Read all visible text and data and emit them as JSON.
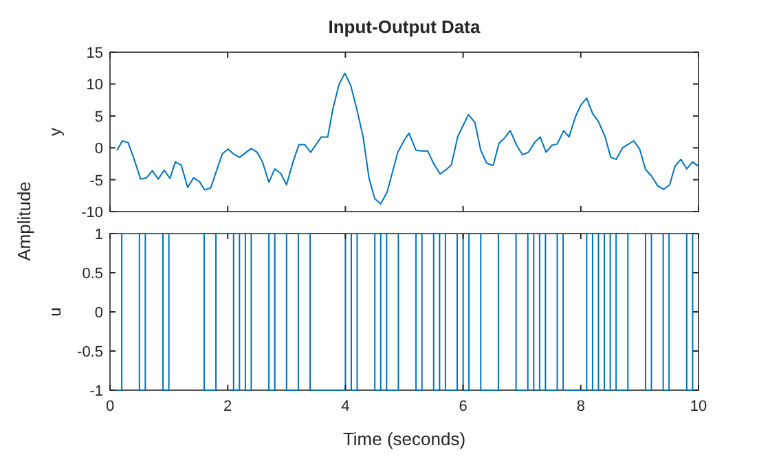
{
  "chart_data": [
    {
      "type": "line",
      "title": "Input-Output Data",
      "ylabel": "y",
      "annotations": [
        "Amplitude"
      ],
      "tick_labels": "y",
      "xlim": [
        0,
        10
      ],
      "xticks": [
        0,
        2,
        4,
        6,
        8,
        10
      ],
      "ylim": [
        -10,
        15
      ],
      "yticks": [
        -10,
        -5,
        0,
        5,
        10,
        15
      ],
      "grid": false,
      "series": [
        {
          "color": "#0072bd",
          "x": [
            0.12,
            0.21,
            0.31,
            0.41,
            0.52,
            0.62,
            0.72,
            0.82,
            0.92,
            1.02,
            1.11,
            1.21,
            1.32,
            1.42,
            1.52,
            1.61,
            1.71,
            1.91,
            2.01,
            2.09,
            2.2,
            2.4,
            2.5,
            2.59,
            2.7,
            2.8,
            2.9,
            3.0,
            3.11,
            3.21,
            3.31,
            3.41,
            3.59,
            3.7,
            3.79,
            3.89,
            3.99,
            4.09,
            4.19,
            4.3,
            4.4,
            4.5,
            4.6,
            4.71,
            4.89,
            5.0,
            5.08,
            5.2,
            5.3,
            5.4,
            5.5,
            5.61,
            5.7,
            5.8,
            5.91,
            6.09,
            6.2,
            6.3,
            6.4,
            6.51,
            6.61,
            6.71,
            6.8,
            6.91,
            7.01,
            7.11,
            7.22,
            7.31,
            7.41,
            7.51,
            7.6,
            7.71,
            7.8,
            7.91,
            8.0,
            8.1,
            8.2,
            8.3,
            8.41,
            8.51,
            8.6,
            8.71,
            8.9,
            9.0,
            9.1,
            9.2,
            9.31,
            9.41,
            9.51,
            9.6,
            9.7,
            9.8,
            9.9,
            10.0
          ],
          "values": [
            -0.4,
            1.1,
            0.8,
            -1.8,
            -4.9,
            -4.7,
            -3.6,
            -4.9,
            -3.5,
            -4.8,
            -2.2,
            -2.7,
            -6.2,
            -4.7,
            -5.3,
            -6.6,
            -6.3,
            -0.9,
            -0.2,
            -0.9,
            -1.5,
            -0.1,
            -0.7,
            -2.2,
            -5.4,
            -3.3,
            -4.0,
            -5.8,
            -2.2,
            0.5,
            0.5,
            -0.7,
            1.7,
            1.7,
            6.2,
            9.9,
            11.7,
            9.8,
            6.2,
            1.8,
            -4.7,
            -8.0,
            -8.8,
            -6.9,
            -0.7,
            1.2,
            2.3,
            -0.4,
            -0.5,
            -0.5,
            -2.5,
            -4.1,
            -3.5,
            -2.7,
            1.8,
            5.2,
            4.0,
            -0.4,
            -2.4,
            -2.8,
            0.7,
            1.6,
            2.7,
            0.4,
            -1.1,
            -0.7,
            0.9,
            1.7,
            -0.7,
            0.4,
            0.6,
            2.7,
            1.7,
            4.9,
            6.7,
            7.8,
            5.4,
            4.1,
            1.8,
            -1.5,
            -1.8,
            0.0,
            1.1,
            -0.2,
            -3.4,
            -4.4,
            -6.0,
            -6.5,
            -5.8,
            -2.9,
            -1.8,
            -3.3,
            -2.2,
            -2.9
          ]
        }
      ]
    },
    {
      "type": "step",
      "ylabel": "u",
      "xlabel": "Time (seconds)",
      "xlim": [
        0,
        10
      ],
      "xticks": [
        0,
        2,
        4,
        6,
        8,
        10
      ],
      "ylim": [
        -1,
        1
      ],
      "yticks": [
        -1,
        -0.5,
        0,
        0.5,
        1
      ],
      "grid": false,
      "series": [
        {
          "color": "#0072bd",
          "x": [
            0,
            0.2,
            0.5,
            0.6,
            0.9,
            1.0,
            1.6,
            1.8,
            2.1,
            2.2,
            2.3,
            2.4,
            2.7,
            2.8,
            3.0,
            3.2,
            3.4,
            4.0,
            4.1,
            4.2,
            4.5,
            4.6,
            4.7,
            4.9,
            5.2,
            5.3,
            5.5,
            5.6,
            5.7,
            5.9,
            6.0,
            6.1,
            6.3,
            6.6,
            6.9,
            7.1,
            7.2,
            7.3,
            7.4,
            7.6,
            7.7,
            8.1,
            8.2,
            8.3,
            8.4,
            8.5,
            8.6,
            8.8,
            9.1,
            9.2,
            9.4,
            9.5,
            9.8,
            9.9,
            10
          ],
          "values": [
            -1,
            1,
            -1,
            1,
            -1,
            1,
            -1,
            1,
            -1,
            1,
            -1,
            1,
            -1,
            1,
            -1,
            1,
            -1,
            1,
            -1,
            1,
            -1,
            1,
            -1,
            1,
            -1,
            1,
            -1,
            1,
            -1,
            1,
            -1,
            1,
            -1,
            1,
            -1,
            1,
            -1,
            1,
            -1,
            1,
            -1,
            1,
            -1,
            1,
            -1,
            1,
            -1,
            1,
            -1,
            1,
            -1,
            1,
            -1,
            1,
            1
          ]
        }
      ]
    }
  ]
}
